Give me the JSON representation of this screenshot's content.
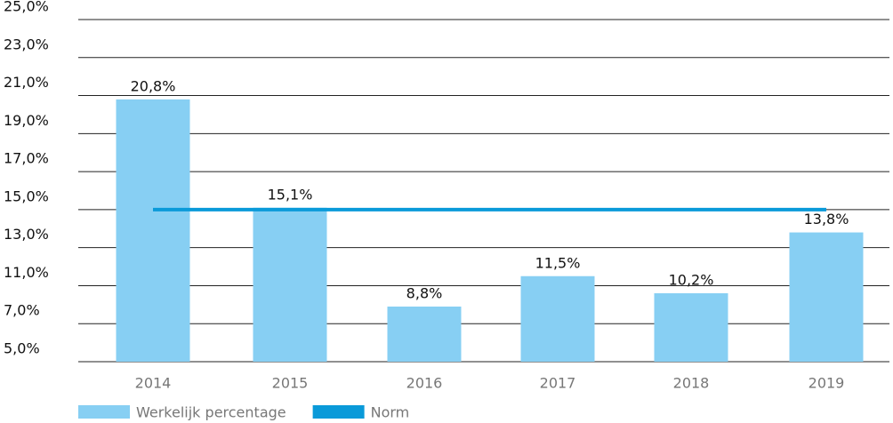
{
  "chart_data": {
    "type": "bar",
    "categories": [
      "2014",
      "2015",
      "2016",
      "2017",
      "2018",
      "2019"
    ],
    "series": [
      {
        "name": "Werkelijk percentage",
        "color": "#87cff3",
        "values": [
          20.8,
          15.1,
          8.8,
          11.5,
          10.2,
          13.8
        ],
        "value_labels": [
          "20,8%",
          "15,1%",
          "8,8%",
          "11,5%",
          "10,2%",
          "13,8%"
        ]
      },
      {
        "name": "Norm",
        "type": "line",
        "color": "#0a9ad9",
        "values": [
          15,
          15,
          15,
          15,
          15,
          15
        ]
      }
    ],
    "ylim": [
      5,
      25
    ],
    "yticks": [
      {
        "value": 5,
        "label": "5,0%"
      },
      {
        "value": 7,
        "label": "7,0%"
      },
      {
        "value": 11,
        "label": "11,0%"
      },
      {
        "value": 13,
        "label": "13,0%"
      },
      {
        "value": 15,
        "label": "15,0%"
      },
      {
        "value": 17,
        "label": "17,0%"
      },
      {
        "value": 19,
        "label": "19,0%"
      },
      {
        "value": 21,
        "label": "21,0%"
      },
      {
        "value": 23,
        "label": "23,0%"
      },
      {
        "value": 25,
        "label": "25,0%"
      }
    ],
    "grid": true,
    "legend": "bottom-left"
  }
}
